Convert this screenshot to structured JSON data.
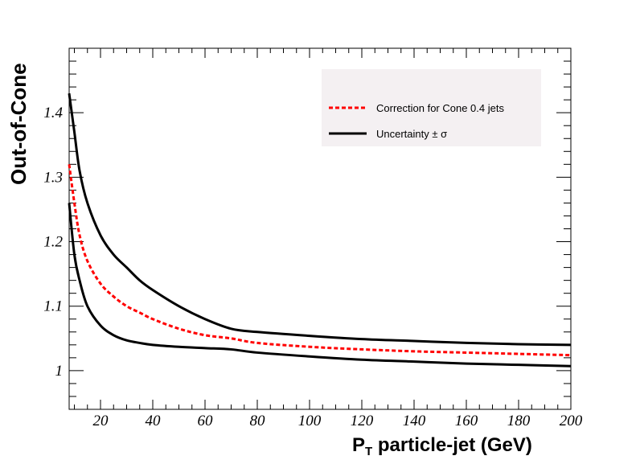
{
  "chart_data": {
    "type": "line",
    "xlabel_main": "P",
    "xlabel_sub": "T",
    "xlabel_rest": " particle-jet (GeV)",
    "ylabel": "Out-of-Cone",
    "xlim": [
      8,
      200
    ],
    "ylim": [
      0.94,
      1.5
    ],
    "x_ticks": [
      20,
      40,
      60,
      80,
      100,
      120,
      140,
      160,
      180,
      200
    ],
    "y_ticks": [
      1,
      1.1,
      1.2,
      1.3,
      1.4
    ],
    "grid": false,
    "legend_position": "top-right",
    "legend": [
      {
        "label": "Correction for Cone 0.4 jets",
        "color": "#ff0000",
        "style": "dashed"
      },
      {
        "label": "Uncertainty ± σ",
        "color": "#000000",
        "style": "solid"
      }
    ],
    "series": [
      {
        "name": "Uncertainty ± σ",
        "color": "#000000",
        "style": "solid",
        "x": [
          8,
          10,
          12,
          15,
          20,
          25,
          30,
          35,
          40,
          50,
          60,
          70,
          80,
          100,
          120,
          140,
          160,
          180,
          200
        ],
        "y": [
          1.43,
          1.37,
          1.31,
          1.26,
          1.21,
          1.18,
          1.16,
          1.14,
          1.125,
          1.1,
          1.08,
          1.065,
          1.06,
          1.054,
          1.049,
          1.046,
          1.043,
          1.041,
          1.04
        ]
      },
      {
        "name": "Correction for Cone 0.4 jets",
        "color": "#ff0000",
        "style": "dashed",
        "x": [
          8,
          10,
          12,
          15,
          20,
          25,
          30,
          35,
          40,
          50,
          60,
          70,
          80,
          100,
          120,
          140,
          160,
          180,
          200
        ],
        "y": [
          1.32,
          1.26,
          1.21,
          1.17,
          1.135,
          1.115,
          1.1,
          1.09,
          1.08,
          1.065,
          1.055,
          1.05,
          1.043,
          1.037,
          1.033,
          1.03,
          1.028,
          1.026,
          1.024
        ]
      },
      {
        "name": "",
        "color": "#000000",
        "style": "solid",
        "x": [
          8,
          10,
          12,
          15,
          20,
          25,
          30,
          35,
          40,
          50,
          60,
          70,
          80,
          100,
          120,
          140,
          160,
          180,
          200
        ],
        "y": [
          1.26,
          1.18,
          1.14,
          1.1,
          1.07,
          1.055,
          1.047,
          1.043,
          1.04,
          1.037,
          1.035,
          1.033,
          1.028,
          1.022,
          1.017,
          1.014,
          1.011,
          1.009,
          1.007
        ]
      }
    ]
  }
}
